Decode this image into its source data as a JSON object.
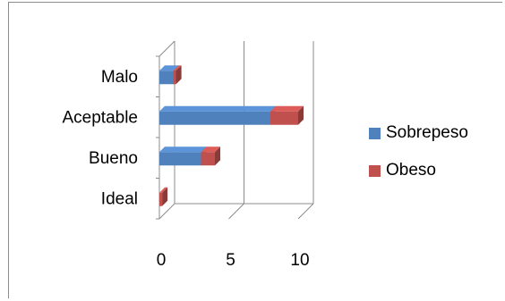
{
  "chart_data": {
    "type": "bar",
    "orientation": "horizontal",
    "stacked": true,
    "three_d": true,
    "categories": [
      "Ideal",
      "Bueno",
      "Aceptable",
      "Malo"
    ],
    "series": [
      {
        "name": "Sobrepeso",
        "values": [
          0,
          3,
          8,
          1
        ],
        "color": "#4f81bd"
      },
      {
        "name": "Obeso",
        "values": [
          0.2,
          1,
          2,
          0.2
        ],
        "color": "#c0504d"
      }
    ],
    "x_ticks": [
      "0",
      "5",
      "10"
    ],
    "xlim": [
      0,
      10
    ],
    "grid": true,
    "legend_position": "right"
  }
}
